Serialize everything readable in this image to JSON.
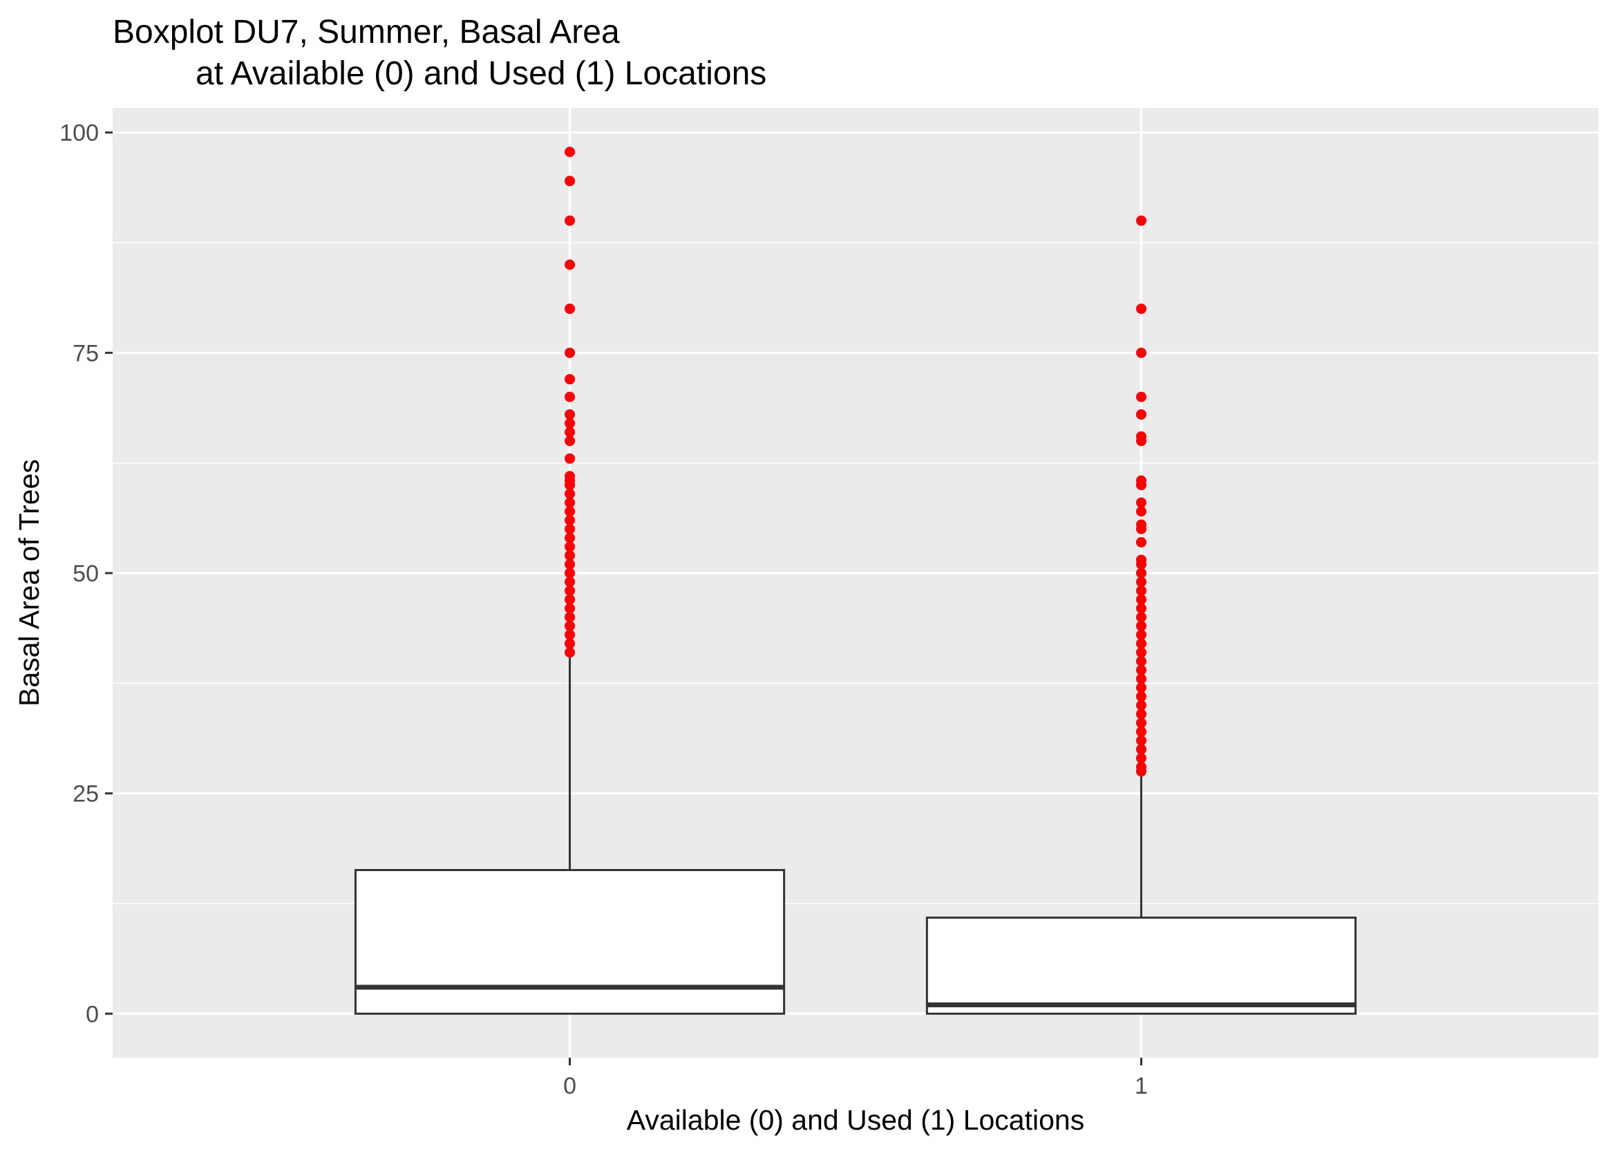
{
  "chart_data": {
    "type": "boxplot",
    "title": "Boxplot DU7, Summer, Basal Area",
    "subtitle": "at Available (0) and Used (1) Locations",
    "xlabel": "Available (0) and Used (1) Locations",
    "ylabel": "Basal Area of Trees",
    "categories": [
      "0",
      "1"
    ],
    "ylim": [
      -5,
      102.8
    ],
    "yticks": [
      0,
      25,
      50,
      75,
      100
    ],
    "y_minor_ticks": [
      12.5,
      37.5,
      62.5,
      87.5
    ],
    "grid": true,
    "legend": "none",
    "colors": {
      "panel": "#ebebeb",
      "grid": "#ffffff",
      "box_fill": "#ffffff",
      "box_line": "#333333",
      "outlier": "#ff0000",
      "tick": "#333333"
    },
    "boxes": [
      {
        "category": "0",
        "min": 0,
        "q1": 0,
        "median": 3,
        "q3": 16.3,
        "whisker_high": 40.8,
        "outliers": [
          97.8,
          94.5,
          90,
          85,
          80,
          75,
          72,
          70,
          68,
          67,
          66,
          65,
          63,
          61,
          60.5,
          60,
          59,
          58,
          57,
          56,
          55,
          54,
          53,
          52,
          51,
          50,
          49,
          48,
          47,
          46,
          45,
          44,
          43,
          42,
          41
        ]
      },
      {
        "category": "1",
        "min": 0,
        "q1": 0,
        "median": 1,
        "q3": 10.9,
        "whisker_high": 27.2,
        "outliers": [
          90,
          80,
          75,
          70,
          68,
          65.5,
          65,
          60.5,
          60,
          58,
          57,
          55.5,
          55,
          53.5,
          51.5,
          51,
          50,
          49,
          48,
          47,
          46,
          45,
          44,
          43,
          42,
          41,
          40,
          39,
          38,
          37,
          36,
          35,
          34,
          33,
          32,
          31,
          30,
          29,
          28,
          27.5
        ]
      }
    ]
  }
}
